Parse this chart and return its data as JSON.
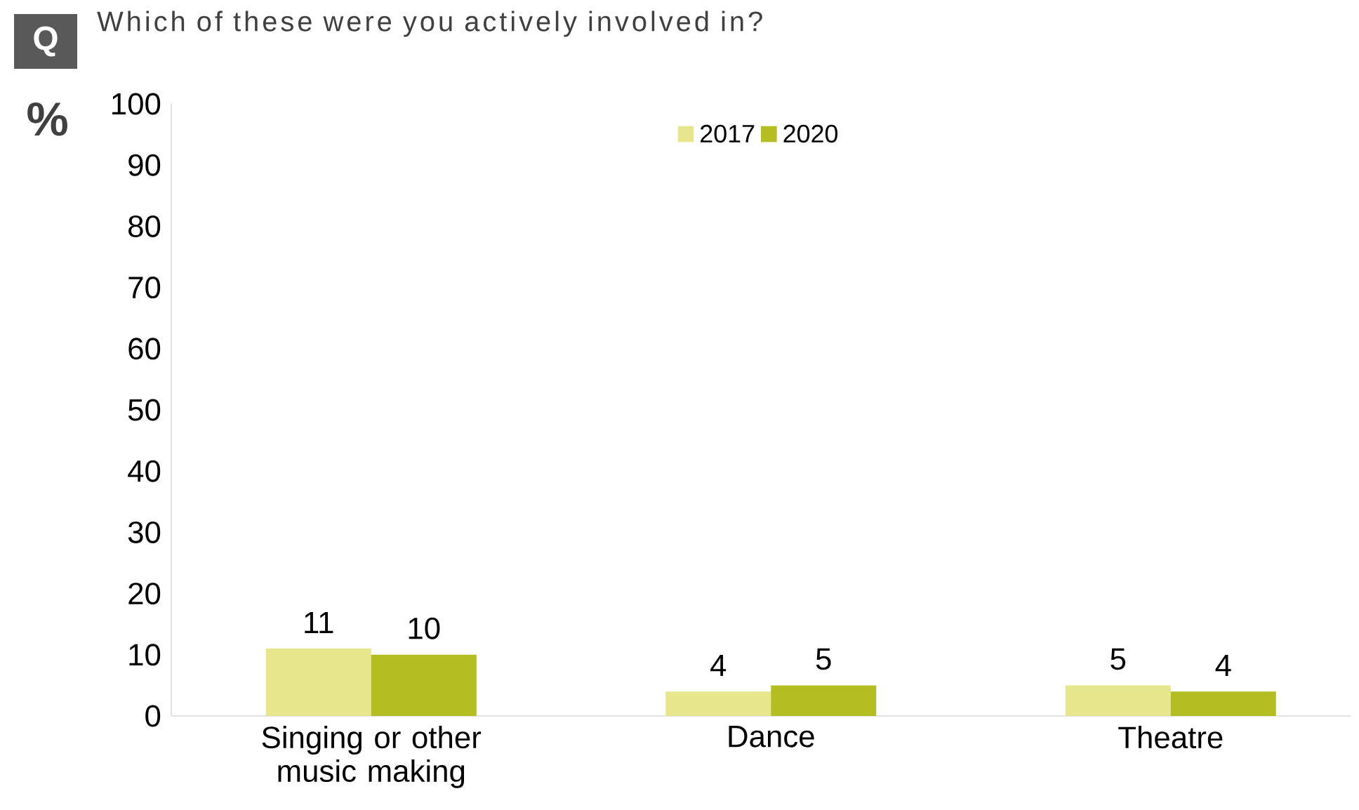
{
  "chart_data": {
    "type": "bar",
    "title": "Which of these were you actively involved in?",
    "ylabel": "%",
    "annotations": [
      "Q"
    ],
    "categories": [
      "Singing or other music making",
      "Dance",
      "Theatre"
    ],
    "series": [
      {
        "name": "2017",
        "color": "#e6e68c",
        "values": [
          11,
          4,
          5
        ]
      },
      {
        "name": "2020",
        "color": "#b4bd22",
        "values": [
          10,
          5,
          4
        ]
      }
    ],
    "ylim": [
      0,
      100
    ],
    "yticks": [
      0,
      10,
      20,
      30,
      40,
      50,
      60,
      70,
      80,
      90,
      100
    ],
    "grid": false,
    "legend": "top",
    "data_labels": true
  }
}
